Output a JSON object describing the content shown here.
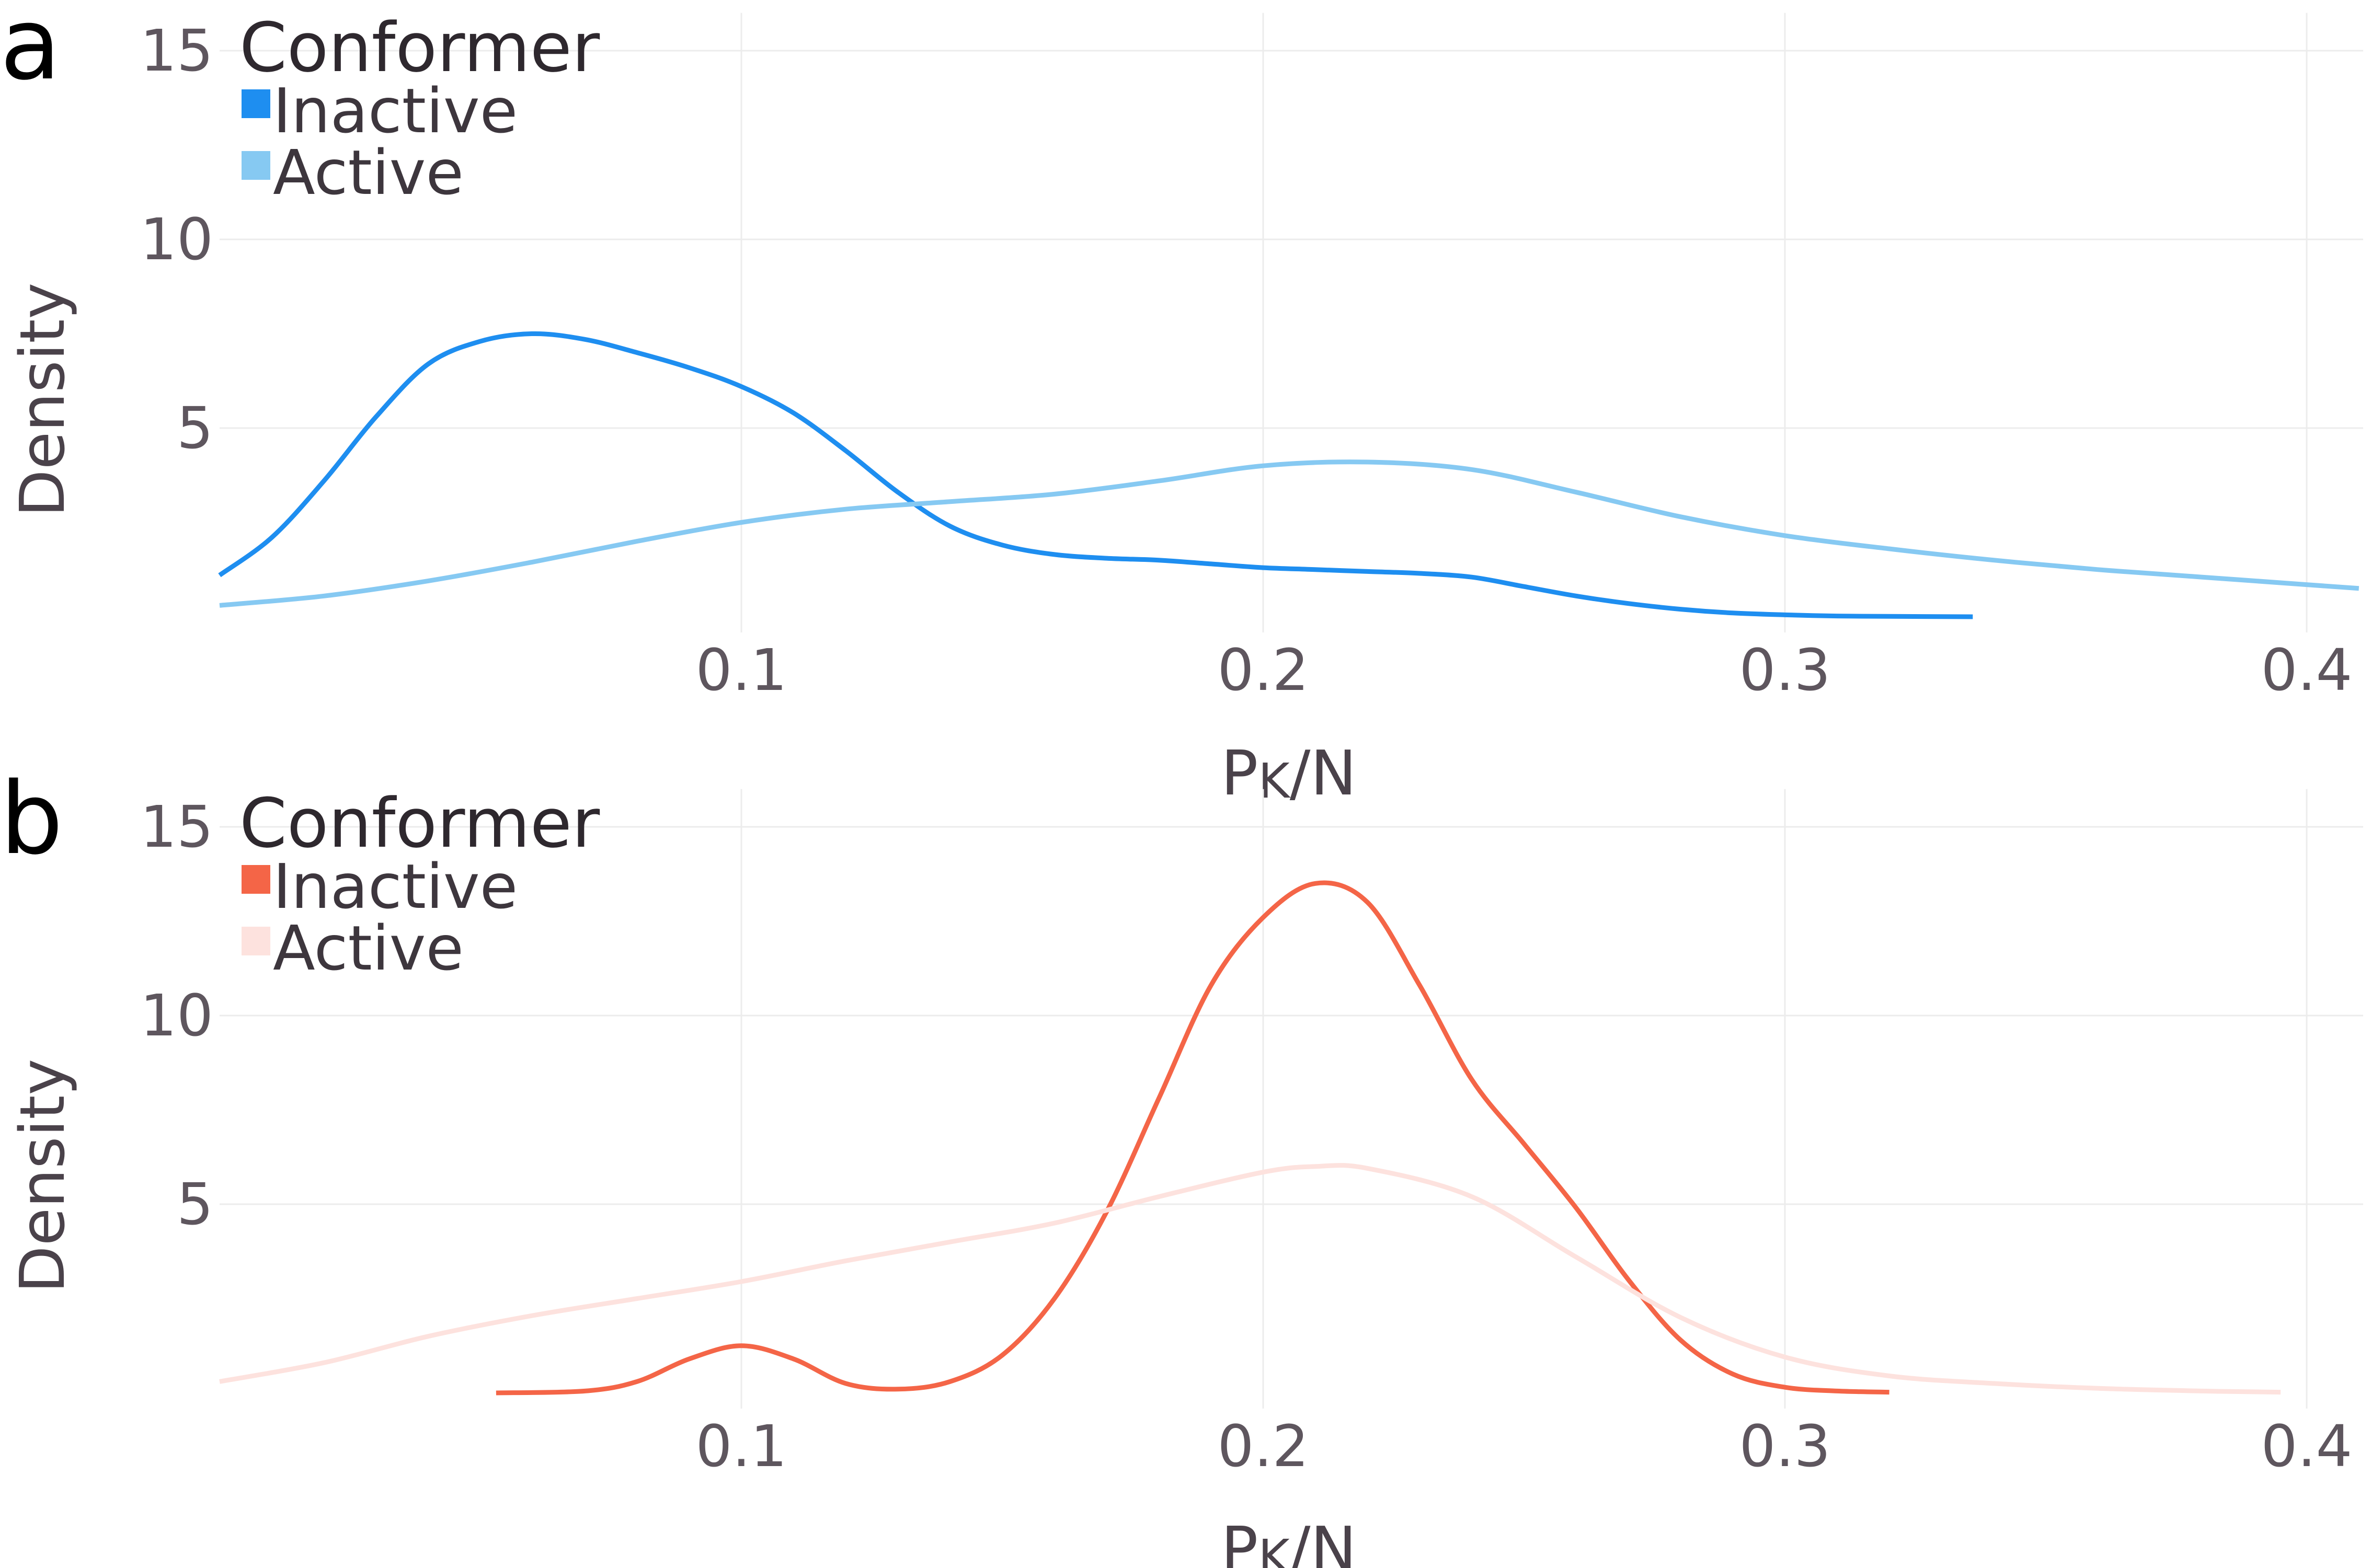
{
  "chart_data": [
    {
      "type": "line",
      "panel_label": "a",
      "xlabel": "P_K/N",
      "xlabel_main": "P",
      "xlabel_sub": "K",
      "xlabel_tail": "/N",
      "ylabel": "Density",
      "xlim": [
        0.0,
        0.41
      ],
      "ylim": [
        0,
        16
      ],
      "xticks": [
        0.1,
        0.2,
        0.3,
        0.4
      ],
      "xtick_labels": [
        "0.1",
        "0.2",
        "0.3",
        "0.4"
      ],
      "yticks": [
        5,
        10,
        15
      ],
      "ytick_labels": [
        "5",
        "10",
        "15"
      ],
      "grid": true,
      "legend": {
        "title": "Conformer",
        "placement": "top-left"
      },
      "series": [
        {
          "name": "Inactive",
          "color": "#1e8ef0",
          "x": [
            0.0,
            0.01,
            0.02,
            0.03,
            0.04,
            0.05,
            0.06,
            0.07,
            0.08,
            0.09,
            0.1,
            0.11,
            0.12,
            0.13,
            0.14,
            0.15,
            0.16,
            0.17,
            0.18,
            0.19,
            0.2,
            0.21,
            0.22,
            0.23,
            0.24,
            0.25,
            0.26,
            0.27,
            0.28,
            0.29,
            0.3,
            0.31,
            0.32,
            0.336
          ],
          "y": [
            1.1,
            2.1,
            3.6,
            5.3,
            6.7,
            7.3,
            7.5,
            7.35,
            7.0,
            6.6,
            6.1,
            5.4,
            4.4,
            3.3,
            2.4,
            1.9,
            1.65,
            1.55,
            1.5,
            1.4,
            1.3,
            1.25,
            1.2,
            1.15,
            1.05,
            0.8,
            0.55,
            0.35,
            0.2,
            0.1,
            0.05,
            0.02,
            0.01,
            0.0
          ]
        },
        {
          "name": "Active",
          "color": "#86c9f2",
          "x": [
            0.0,
            0.02,
            0.04,
            0.06,
            0.08,
            0.1,
            0.12,
            0.14,
            0.16,
            0.18,
            0.2,
            0.22,
            0.24,
            0.26,
            0.28,
            0.3,
            0.32,
            0.34,
            0.36,
            0.38,
            0.4,
            0.41
          ],
          "y": [
            0.3,
            0.55,
            0.95,
            1.45,
            2.0,
            2.5,
            2.85,
            3.05,
            3.25,
            3.6,
            4.0,
            4.1,
            3.9,
            3.3,
            2.65,
            2.15,
            1.8,
            1.5,
            1.25,
            1.05,
            0.85,
            0.75
          ]
        }
      ]
    },
    {
      "type": "line",
      "panel_label": "b",
      "xlabel": "P_K/N",
      "xlabel_main": "P",
      "xlabel_sub": "K",
      "xlabel_tail": "/N",
      "ylabel": "Density",
      "xlim": [
        0.0,
        0.41
      ],
      "ylim": [
        0,
        16
      ],
      "xticks": [
        0.1,
        0.2,
        0.3,
        0.4
      ],
      "xtick_labels": [
        "0.1",
        "0.2",
        "0.3",
        "0.4"
      ],
      "yticks": [
        5,
        10,
        15
      ],
      "ytick_labels": [
        "5",
        "10",
        "15"
      ],
      "grid": true,
      "legend": {
        "title": "Conformer",
        "placement": "top-left"
      },
      "series": [
        {
          "name": "Inactive",
          "color": "#f46547",
          "x": [
            0.053,
            0.07,
            0.08,
            0.09,
            0.1,
            0.11,
            0.12,
            0.13,
            0.14,
            0.15,
            0.16,
            0.17,
            0.18,
            0.19,
            0.2,
            0.21,
            0.22,
            0.23,
            0.24,
            0.25,
            0.26,
            0.27,
            0.28,
            0.29,
            0.3,
            0.31,
            0.32
          ],
          "y": [
            0.0,
            0.05,
            0.3,
            0.9,
            1.25,
            0.9,
            0.25,
            0.1,
            0.3,
            1.0,
            2.5,
            4.8,
            7.8,
            10.8,
            12.6,
            13.5,
            13.0,
            10.8,
            8.3,
            6.6,
            4.9,
            3.0,
            1.4,
            0.5,
            0.15,
            0.05,
            0.02
          ]
        },
        {
          "name": "Active",
          "color": "#fde2de",
          "x": [
            0.0,
            0.02,
            0.04,
            0.06,
            0.08,
            0.1,
            0.12,
            0.14,
            0.16,
            0.18,
            0.2,
            0.21,
            0.22,
            0.24,
            0.26,
            0.28,
            0.3,
            0.32,
            0.34,
            0.36,
            0.38,
            0.395
          ],
          "y": [
            0.3,
            0.8,
            1.5,
            2.05,
            2.5,
            2.95,
            3.5,
            4.0,
            4.5,
            5.2,
            5.85,
            6.0,
            5.95,
            5.2,
            3.6,
            2.0,
            0.95,
            0.45,
            0.25,
            0.12,
            0.05,
            0.02
          ]
        }
      ]
    }
  ]
}
